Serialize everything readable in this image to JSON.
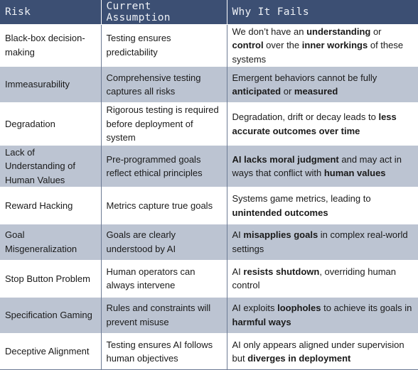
{
  "headers": {
    "risk": "Risk",
    "assumption": "Current Assumption",
    "why": "Why It Fails"
  },
  "rows": [
    {
      "risk": "Black-box decision-making",
      "assumption": "Testing ensures predictability",
      "why": [
        {
          "t": "We don’t have an ",
          "b": false
        },
        {
          "t": "understanding",
          "b": true
        },
        {
          "t": " or ",
          "b": false
        },
        {
          "t": "control",
          "b": true
        },
        {
          "t": " over the ",
          "b": false
        },
        {
          "t": "inner workings",
          "b": true
        },
        {
          "t": " of these systems",
          "b": false
        }
      ]
    },
    {
      "risk": "Immeasurability",
      "assumption": "Comprehensive testing captures all risks",
      "why": [
        {
          "t": "Emergent behaviors cannot be fully ",
          "b": false
        },
        {
          "t": "anticipated",
          "b": true
        },
        {
          "t": " or ",
          "b": false
        },
        {
          "t": "measured",
          "b": true
        }
      ]
    },
    {
      "risk": "Degradation",
      "assumption": "Rigorous testing is required before deployment of system",
      "why": [
        {
          "t": "Degradation, drift or decay leads to ",
          "b": false
        },
        {
          "t": "less accurate outcomes over time",
          "b": true
        }
      ]
    },
    {
      "risk": "Lack of Understanding of Human Values",
      "assumption": "Pre-programmed goals reflect ethical principles",
      "why": [
        {
          "t": "AI lacks moral judgment",
          "b": true
        },
        {
          "t": " and may act in ways that conflict with ",
          "b": false
        },
        {
          "t": "human values",
          "b": true
        }
      ]
    },
    {
      "risk": "Reward Hacking",
      "assumption": "Metrics capture true goals",
      "why": [
        {
          "t": "Systems game metrics, leading to ",
          "b": false
        },
        {
          "t": "unintended outcomes",
          "b": true
        }
      ]
    },
    {
      "risk": "Goal Misgeneralization",
      "assumption": "Goals are clearly understood by AI",
      "why": [
        {
          "t": "AI ",
          "b": false
        },
        {
          "t": "misapplies goals",
          "b": true
        },
        {
          "t": " in complex real-world settings",
          "b": false
        }
      ]
    },
    {
      "risk": "Stop Button Problem",
      "assumption": "Human operators can always intervene",
      "why": [
        {
          "t": "AI ",
          "b": false
        },
        {
          "t": "resists shutdown",
          "b": true
        },
        {
          "t": ", overriding human control",
          "b": false
        }
      ]
    },
    {
      "risk": "Specification Gaming",
      "assumption": "Rules and constraints will prevent misuse",
      "why": [
        {
          "t": "AI exploits ",
          "b": false
        },
        {
          "t": "loopholes",
          "b": true
        },
        {
          "t": " to achieve its goals in ",
          "b": false
        },
        {
          "t": "harmful ways",
          "b": true
        }
      ]
    },
    {
      "risk": "Deceptive Alignment",
      "assumption": "Testing ensures AI follows human objectives",
      "why": [
        {
          "t": "AI only appears aligned under supervision but ",
          "b": false
        },
        {
          "t": "diverges in deployment",
          "b": true
        }
      ]
    }
  ],
  "colors": {
    "header_bg": "#3c4f73",
    "header_text": "#eef1f6",
    "band_bg": "#bcc4d2",
    "row_bg": "#ffffff"
  }
}
